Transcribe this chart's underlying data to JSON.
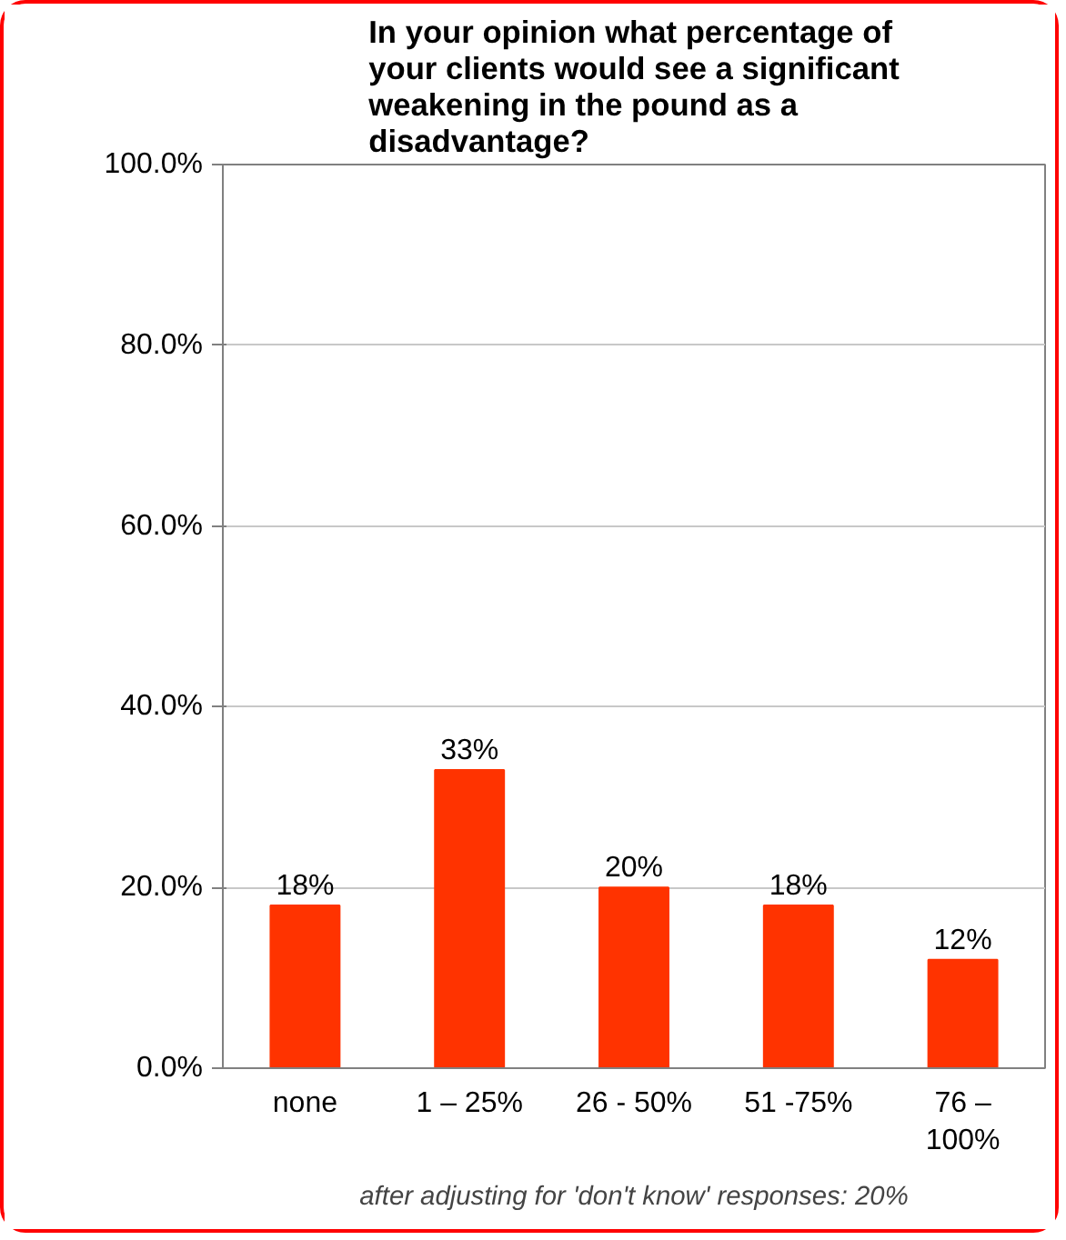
{
  "chart_data": {
    "type": "bar",
    "title": "In your opinion what percentage of your clients would see a significant weakening in the pound as a disadvantage?",
    "categories": [
      "none",
      "1 – 25%",
      "26 - 50%",
      "51 -75%",
      "76 – 100%"
    ],
    "values": [
      18,
      33,
      20,
      18,
      12
    ],
    "color": "#ff3300",
    "value_labels": [
      "18%",
      "33%",
      "20%",
      "18%",
      "12%"
    ],
    "ylim": [
      0,
      100
    ],
    "yticks": [
      {
        "value": 0,
        "label": "0.0%"
      },
      {
        "value": 20,
        "label": "20.0%"
      },
      {
        "value": 40,
        "label": "40.0%"
      },
      {
        "value": 60,
        "label": "60.0%"
      },
      {
        "value": 80,
        "label": "80.0%"
      },
      {
        "value": 100,
        "label": "100.0%"
      }
    ],
    "grid": "y",
    "annotations": [
      "after adjusting for 'don't know' responses: 20%"
    ]
  }
}
